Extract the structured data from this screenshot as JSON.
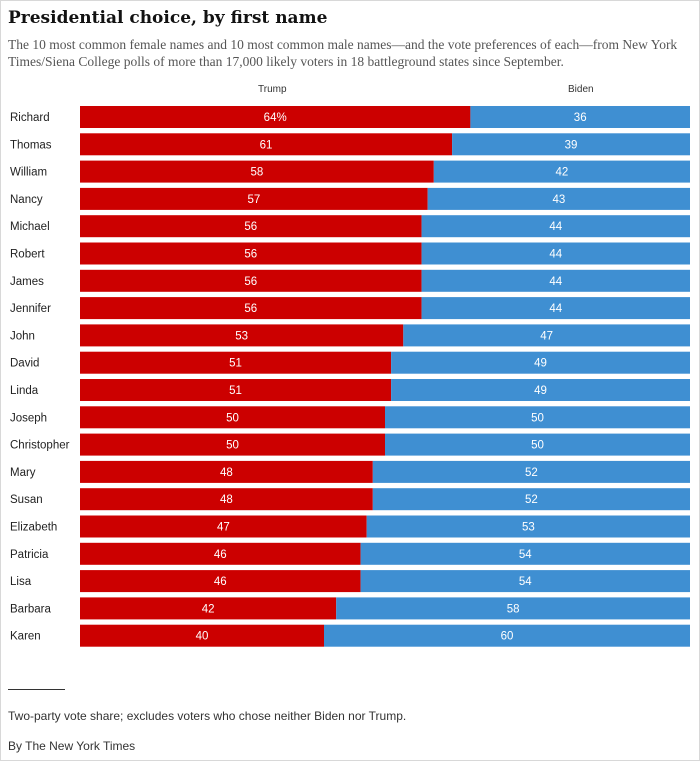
{
  "title": "Presidential choice, by first name",
  "subtitle": "The 10 most common female names and 10 most common male names—and the vote preferences of each—from New York Times/Siena College polls of more than 17,000 likely voters in 18 battleground states since September.",
  "note": "Two-party vote share; excludes voters who chose neither Biden nor Trump.",
  "credit": "By The New York Times",
  "colors": {
    "trump": "#cc0000",
    "biden": "#3f8fd2"
  },
  "chart_data": {
    "type": "bar",
    "orientation": "horizontal",
    "stacked": true,
    "categories": [
      "Richard",
      "Thomas",
      "William",
      "Nancy",
      "Michael",
      "Robert",
      "James",
      "Jennifer",
      "John",
      "David",
      "Linda",
      "Joseph",
      "Christopher",
      "Mary",
      "Susan",
      "Elizabeth",
      "Patricia",
      "Lisa",
      "Barbara",
      "Karen"
    ],
    "series": [
      {
        "name": "Trump",
        "values": [
          64,
          61,
          58,
          57,
          56,
          56,
          56,
          56,
          53,
          51,
          51,
          50,
          50,
          48,
          48,
          47,
          46,
          46,
          42,
          40
        ]
      },
      {
        "name": "Biden",
        "values": [
          36,
          39,
          42,
          43,
          44,
          44,
          44,
          44,
          47,
          49,
          49,
          50,
          50,
          52,
          52,
          53,
          54,
          54,
          58,
          60
        ]
      }
    ],
    "first_label_suffix": "%",
    "xlim": [
      0,
      100
    ]
  }
}
